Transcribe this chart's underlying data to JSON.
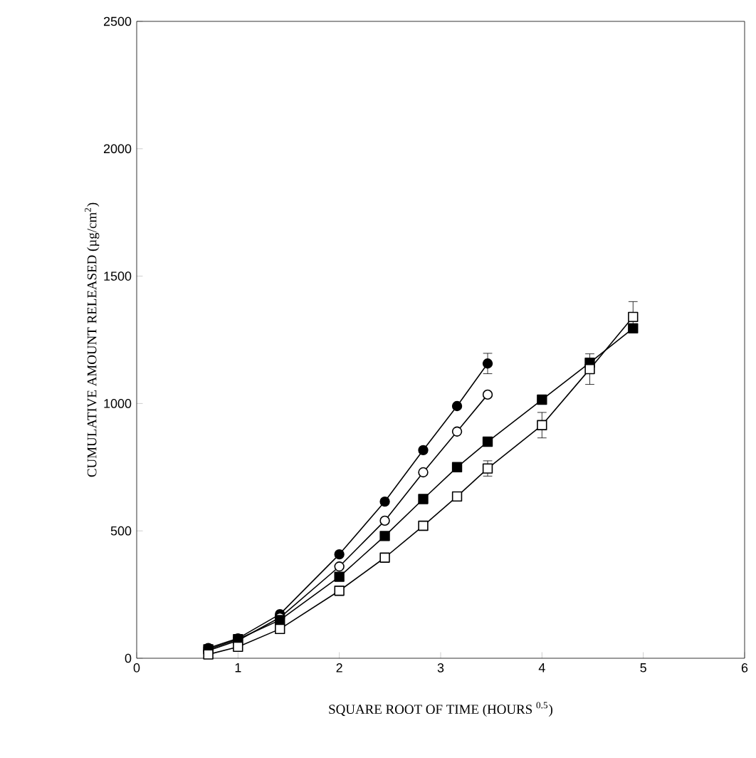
{
  "chart_data": {
    "type": "line",
    "xlabel": "SQUARE ROOT OF TIME (HOURS $^{0.5}$)",
    "ylabel": "CUMULATIVE AMOUNT RELEASED (µg/cm$^{2}$)",
    "xlim": [
      0,
      6
    ],
    "xticks": [
      0,
      1,
      2,
      3,
      4,
      5,
      6
    ],
    "ylim": [
      0,
      2500
    ],
    "yticks": [
      0,
      500,
      1000,
      1500,
      2000,
      2500
    ],
    "grid": false,
    "legend": false,
    "line_style": "solid",
    "series": [
      {
        "color": "#000000",
        "marker": "circle",
        "x": [
          0.707,
          1,
          1.414,
          2,
          2.449,
          2.828,
          3.162,
          3.464
        ],
        "values": [
          40,
          78,
          173,
          408,
          615,
          817,
          990,
          1157
        ],
        "errors": [
          null,
          null,
          null,
          null,
          null,
          null,
          null,
          40
        ]
      },
      {
        "color": "#ffffff",
        "marker": "circle",
        "x": [
          0.707,
          1,
          1.414,
          2,
          2.449,
          2.828,
          3.162,
          3.464
        ],
        "values": [
          30,
          70,
          160,
          360,
          540,
          730,
          890,
          1035
        ],
        "errors": [
          null,
          null,
          null,
          null,
          null,
          null,
          null,
          null
        ]
      },
      {
        "color": "#000000",
        "marker": "square",
        "x": [
          0.707,
          1,
          1.414,
          2,
          2.449,
          2.828,
          3.162,
          3.464,
          4,
          4.472,
          4.899
        ],
        "values": [
          35,
          75,
          150,
          320,
          480,
          625,
          750,
          850,
          1015,
          1160,
          1295
        ],
        "errors": [
          null,
          null,
          null,
          null,
          null,
          null,
          null,
          null,
          null,
          null,
          null
        ]
      },
      {
        "color": "#ffffff",
        "marker": "square",
        "x": [
          0.707,
          1,
          1.414,
          2,
          2.449,
          2.828,
          3.162,
          3.464,
          4,
          4.472,
          4.899
        ],
        "values": [
          15,
          45,
          115,
          265,
          395,
          520,
          635,
          745,
          915,
          1135,
          1340
        ],
        "errors": [
          null,
          null,
          null,
          null,
          null,
          null,
          null,
          30,
          50,
          60,
          60
        ]
      }
    ]
  }
}
